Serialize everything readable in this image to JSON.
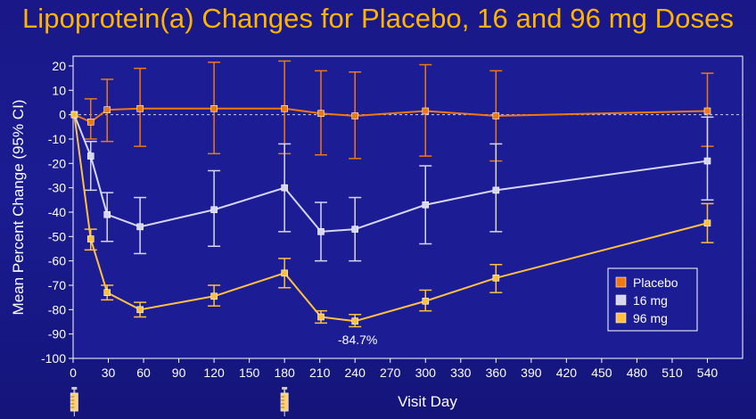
{
  "chart_data": {
    "type": "line",
    "title": "Lipoprotein(a) Changes for Placebo, 16 and 96 mg Doses",
    "xlabel": "Visit Day",
    "ylabel": "Mean Percent Change (95% CI)",
    "xlim": [
      0,
      570
    ],
    "ylim": [
      -100,
      24
    ],
    "x_ticks": [
      0,
      30,
      60,
      90,
      120,
      150,
      180,
      210,
      240,
      270,
      300,
      330,
      360,
      390,
      420,
      450,
      480,
      510,
      540
    ],
    "y_ticks": [
      20,
      10,
      0,
      -10,
      -20,
      -30,
      -40,
      -50,
      -60,
      -70,
      -80,
      -90,
      -100
    ],
    "reference_line": 0,
    "legend_position": "lower-right",
    "annotation": {
      "text": "-84.7%",
      "x": 240,
      "y": -84.7
    },
    "dosing_days": [
      1,
      180
    ],
    "series": [
      {
        "name": "Placebo",
        "color": "#f07810",
        "x": [
          1,
          15,
          29,
          57,
          120,
          180,
          211,
          240,
          300,
          360,
          540
        ],
        "values": [
          0,
          -3,
          2,
          2.5,
          2.5,
          2.5,
          0.5,
          -0.5,
          1.5,
          -0.5,
          1.5
        ],
        "ci_low": [
          0,
          -10,
          -11,
          -13,
          -16,
          -16,
          -16.5,
          -18,
          -17,
          -19,
          -13
        ],
        "ci_high": [
          0,
          6.5,
          14.5,
          19,
          21.5,
          22,
          18,
          17.5,
          20.5,
          18,
          17
        ]
      },
      {
        "name": "16 mg",
        "color": "#d6d6f0",
        "x": [
          1,
          15,
          29,
          57,
          120,
          180,
          211,
          240,
          300,
          360,
          540
        ],
        "values": [
          0,
          -17,
          -41,
          -46,
          -39,
          -30,
          -48,
          -47,
          -37,
          -31,
          -19
        ],
        "ci_low": [
          0,
          -31,
          -52,
          -57,
          -54,
          -48,
          -60,
          -60,
          -53,
          -48,
          -35
        ],
        "ci_high": [
          0,
          -11,
          -32,
          -34,
          -23,
          -12,
          -36,
          -34,
          -21,
          -12,
          -1
        ]
      },
      {
        "name": "96 mg",
        "color": "#ffc040",
        "x": [
          1,
          15,
          29,
          57,
          120,
          180,
          211,
          240,
          300,
          360,
          540
        ],
        "values": [
          0,
          -51,
          -73,
          -80,
          -74.5,
          -65,
          -83,
          -84.7,
          -76.5,
          -67,
          -44.5
        ],
        "ci_low": [
          0,
          -55.5,
          -76,
          -83,
          -78.5,
          -71,
          -85.5,
          -87,
          -80.5,
          -73,
          -52.5
        ],
        "ci_high": [
          0,
          -47,
          -70,
          -77,
          -70,
          -59,
          -80.5,
          -82,
          -72,
          -61.5,
          -36.5
        ]
      }
    ]
  }
}
